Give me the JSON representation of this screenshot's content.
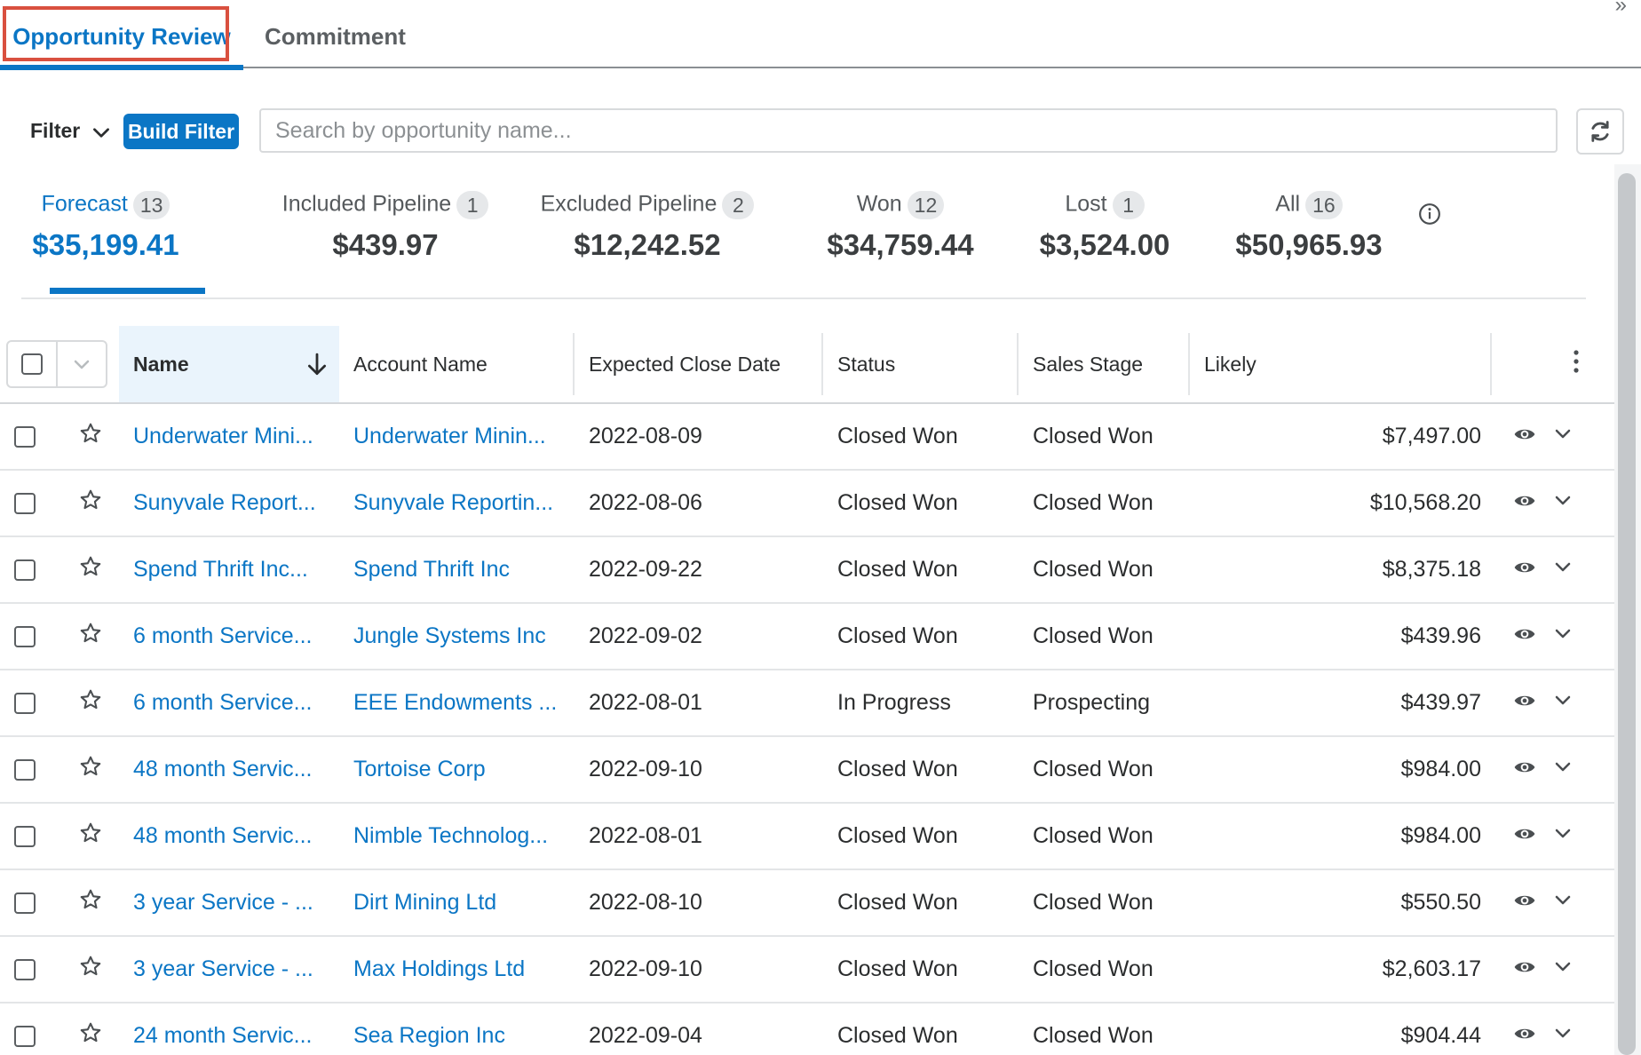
{
  "tabs": [
    {
      "label": "Opportunity Review",
      "active": true
    },
    {
      "label": "Commitment",
      "active": false
    }
  ],
  "filter": {
    "label": "Filter",
    "build_filter_label": "Build Filter",
    "search_placeholder": "Search by opportunity name..."
  },
  "metrics": [
    {
      "label": "Forecast",
      "count": "13",
      "value": "$35,199.41",
      "active": true
    },
    {
      "label": "Included Pipeline",
      "count": "1",
      "value": "$439.97"
    },
    {
      "label": "Excluded Pipeline",
      "count": "2",
      "value": "$12,242.52"
    },
    {
      "label": "Won",
      "count": "12",
      "value": "$34,759.44"
    },
    {
      "label": "Lost",
      "count": "1",
      "value": "$3,524.00"
    },
    {
      "label": "All",
      "count": "16",
      "value": "$50,965.93"
    }
  ],
  "table": {
    "columns": [
      "Name",
      "Account Name",
      "Expected Close Date",
      "Status",
      "Sales Stage",
      "Likely"
    ],
    "rows": [
      {
        "name": "Underwater Mini...",
        "account": "Underwater Minin...",
        "close_date": "2022-08-09",
        "status": "Closed Won",
        "stage": "Closed Won",
        "likely": "$7,497.00"
      },
      {
        "name": "Sunyvale Report...",
        "account": "Sunyvale Reportin...",
        "close_date": "2022-08-06",
        "status": "Closed Won",
        "stage": "Closed Won",
        "likely": "$10,568.20"
      },
      {
        "name": "Spend Thrift Inc...",
        "account": "Spend Thrift Inc",
        "close_date": "2022-09-22",
        "status": "Closed Won",
        "stage": "Closed Won",
        "likely": "$8,375.18"
      },
      {
        "name": "6 month Service...",
        "account": "Jungle Systems Inc",
        "close_date": "2022-09-02",
        "status": "Closed Won",
        "stage": "Closed Won",
        "likely": "$439.96"
      },
      {
        "name": "6 month Service...",
        "account": "EEE Endowments ...",
        "close_date": "2022-08-01",
        "status": "In Progress",
        "stage": "Prospecting",
        "likely": "$439.97"
      },
      {
        "name": "48 month Servic...",
        "account": "Tortoise Corp",
        "close_date": "2022-09-10",
        "status": "Closed Won",
        "stage": "Closed Won",
        "likely": "$984.00"
      },
      {
        "name": "48 month Servic...",
        "account": "Nimble Technolog...",
        "close_date": "2022-08-01",
        "status": "Closed Won",
        "stage": "Closed Won",
        "likely": "$984.00"
      },
      {
        "name": "3 year Service - ...",
        "account": "Dirt Mining Ltd",
        "close_date": "2022-08-10",
        "status": "Closed Won",
        "stage": "Closed Won",
        "likely": "$550.50"
      },
      {
        "name": "3 year Service - ...",
        "account": "Max Holdings Ltd",
        "close_date": "2022-09-10",
        "status": "Closed Won",
        "stage": "Closed Won",
        "likely": "$2,603.17"
      },
      {
        "name": "24 month Servic...",
        "account": "Sea Region Inc",
        "close_date": "2022-09-04",
        "status": "Closed Won",
        "stage": "Closed Won",
        "likely": "$904.44"
      }
    ]
  },
  "colors": {
    "accent": "#0b76c5",
    "highlight_border": "#d9503f"
  },
  "icons": [
    "chevron-down-icon",
    "refresh-icon",
    "info-icon",
    "sort-arrow-down-icon",
    "kebab-menu-icon",
    "star-icon",
    "eye-icon"
  ]
}
